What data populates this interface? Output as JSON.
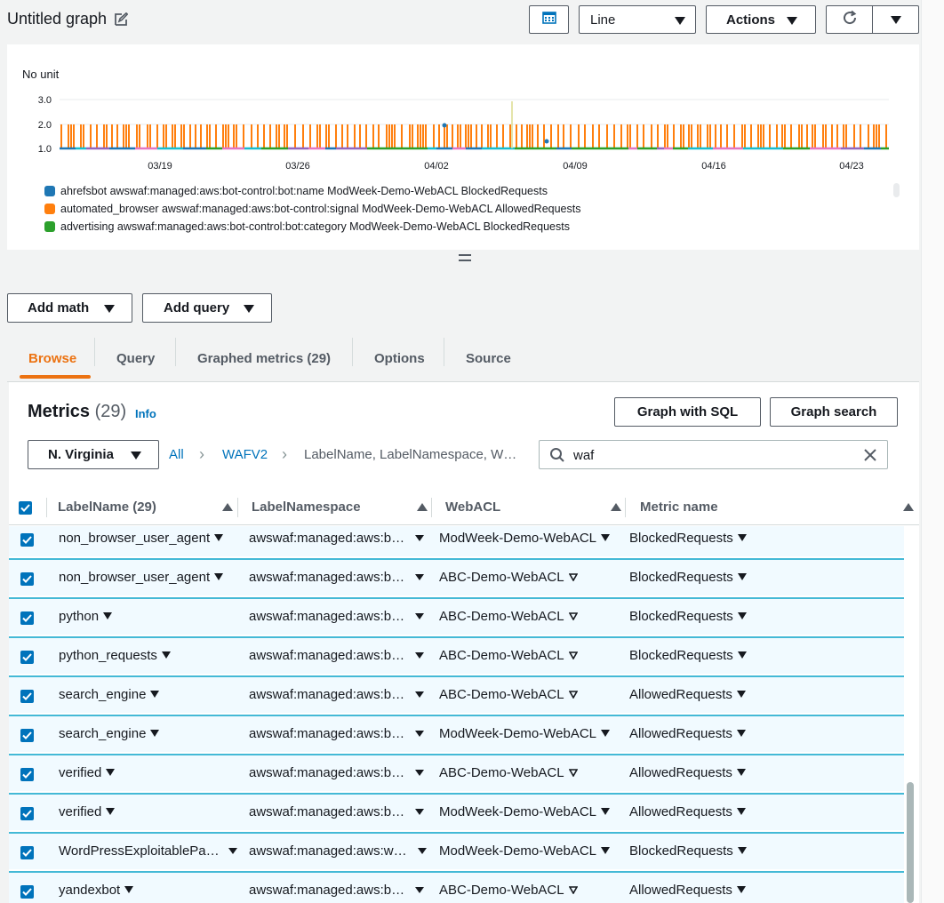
{
  "graph": {
    "title": "Untitled graph",
    "chart_type_select": "Line",
    "actions_label": "Actions"
  },
  "chart_data": {
    "type": "line",
    "ylabel": "No unit",
    "y_ticks": [
      "3.0",
      "2.0",
      "1.0"
    ],
    "x_ticks": [
      "03/19",
      "03/26",
      "04/02",
      "04/09",
      "04/16",
      "04/23"
    ],
    "ylim": [
      1.0,
      3.0
    ],
    "series": [
      {
        "name": "ahrefsbot awswaf:managed:aws:bot-control:bot:name ModWeek-Demo-WebACL BlockedRequests",
        "color": "#1f77b4"
      },
      {
        "name": "automated_browser awswaf:managed:aws:bot-control:signal ModWeek-Demo-WebACL AllowedRequests",
        "color": "#ff7f0e"
      },
      {
        "name": "advertising awswaf:managed:aws:bot-control:bot:category ModWeek-Demo-WebACL BlockedRequests",
        "color": "#2ca02c"
      }
    ]
  },
  "toolbar": {
    "add_math": "Add math",
    "add_query": "Add query"
  },
  "tabs": [
    "Browse",
    "Query",
    "Graphed metrics (29)",
    "Options",
    "Source"
  ],
  "metrics": {
    "title": "Metrics",
    "count": "(29)",
    "info": "Info",
    "graph_sql": "Graph with SQL",
    "graph_search": "Graph search",
    "region": "N. Virginia",
    "breadcrumb": [
      "All",
      "WAFV2",
      "LabelName, LabelNamespace, W…"
    ],
    "search_value": "waf"
  },
  "table": {
    "columns": [
      "LabelName  (29)",
      "LabelNamespace",
      "WebACL",
      "Metric name"
    ],
    "rows": [
      {
        "label": "non_browser_user_agent",
        "ns": "awswaf:managed:aws:b…",
        "acl": "ModWeek-Demo-WebACL",
        "metric": "BlockedRequests"
      },
      {
        "label": "non_browser_user_agent",
        "ns": "awswaf:managed:aws:b…",
        "acl": "ABC-Demo-WebACL",
        "metric": "BlockedRequests"
      },
      {
        "label": "python",
        "ns": "awswaf:managed:aws:b…",
        "acl": "ABC-Demo-WebACL",
        "metric": "BlockedRequests"
      },
      {
        "label": "python_requests",
        "ns": "awswaf:managed:aws:b…",
        "acl": "ABC-Demo-WebACL",
        "metric": "BlockedRequests"
      },
      {
        "label": "search_engine",
        "ns": "awswaf:managed:aws:b…",
        "acl": "ABC-Demo-WebACL",
        "metric": "AllowedRequests"
      },
      {
        "label": "search_engine",
        "ns": "awswaf:managed:aws:b…",
        "acl": "ModWeek-Demo-WebACL",
        "metric": "AllowedRequests"
      },
      {
        "label": "verified",
        "ns": "awswaf:managed:aws:b…",
        "acl": "ABC-Demo-WebACL",
        "metric": "AllowedRequests"
      },
      {
        "label": "verified",
        "ns": "awswaf:managed:aws:b…",
        "acl": "ModWeek-Demo-WebACL",
        "metric": "AllowedRequests"
      },
      {
        "label": "WordPressExploitablePa…",
        "ns": "awswaf:managed:aws:w…",
        "acl": "ModWeek-Demo-WebACL",
        "metric": "BlockedRequests"
      },
      {
        "label": "yandexbot",
        "ns": "awswaf:managed:aws:b…",
        "acl": "ABC-Demo-WebACL",
        "metric": "AllowedRequests"
      }
    ]
  },
  "icons": {
    "edit": "edit-icon",
    "calendar": "calendar-icon",
    "refresh": "refresh-icon",
    "search": "search-icon",
    "clear": "clear-icon",
    "checkbox": "checkbox-icon"
  }
}
